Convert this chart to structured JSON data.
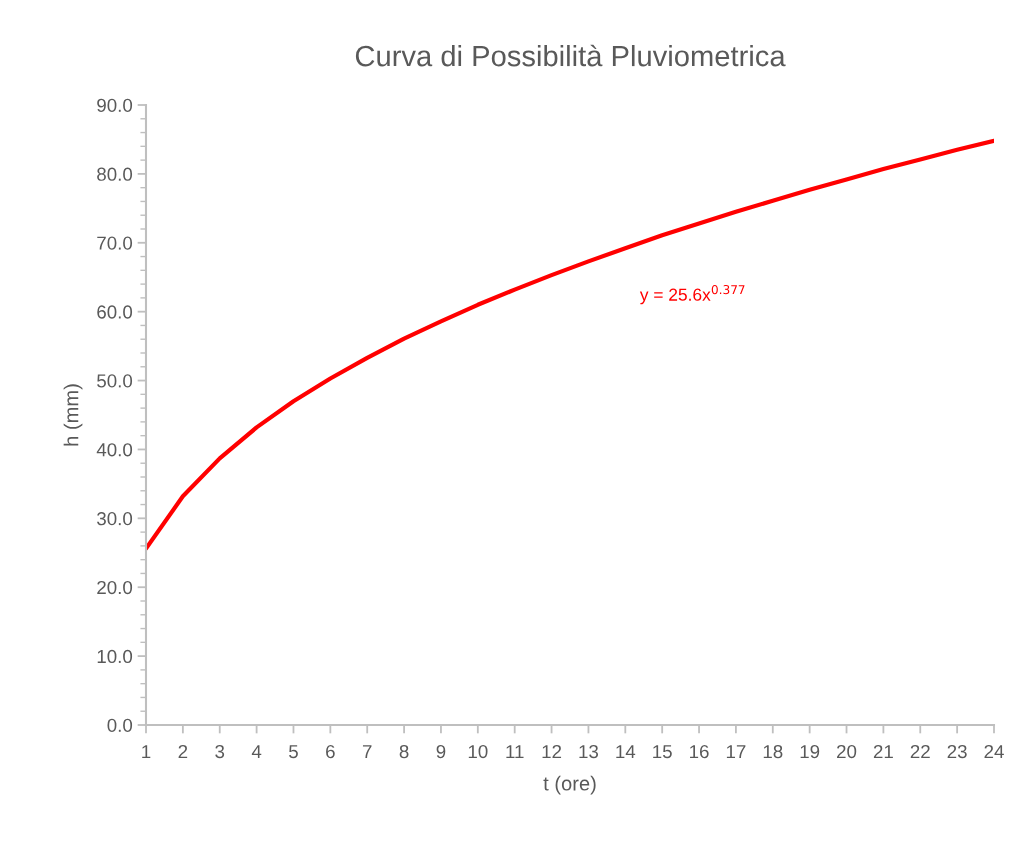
{
  "chart_data": {
    "type": "line",
    "title": "Curva di Possibilità Pluviometrica",
    "xlabel": "t (ore)",
    "ylabel": "h (mm)",
    "x": [
      1,
      2,
      3,
      4,
      5,
      6,
      7,
      8,
      9,
      10,
      11,
      12,
      13,
      14,
      15,
      16,
      17,
      18,
      19,
      20,
      21,
      22,
      23,
      24
    ],
    "series": [
      {
        "color": "#ff0000",
        "values": [
          25.6,
          33.2,
          38.7,
          43.2,
          47.0,
          50.3,
          53.3,
          56.1,
          58.6,
          61.0,
          63.2,
          65.3,
          67.3,
          69.2,
          71.1,
          72.8,
          74.5,
          76.1,
          77.7,
          79.2,
          80.7,
          82.1,
          83.5,
          84.8
        ]
      }
    ],
    "annotations": [
      "y = 25.6x$^{0.377}$"
    ],
    "xlim": [
      1,
      24
    ],
    "xticks": [
      1,
      2,
      3,
      4,
      5,
      6,
      7,
      8,
      9,
      10,
      11,
      12,
      13,
      14,
      15,
      16,
      17,
      18,
      19,
      20,
      21,
      22,
      23,
      24
    ],
    "ylim": [
      0,
      90
    ],
    "yticks": [
      {
        "value": 0,
        "label": "0.0"
      },
      {
        "value": 10,
        "label": "10.0"
      },
      {
        "value": 20,
        "label": "20.0"
      },
      {
        "value": 30,
        "label": "30.0"
      },
      {
        "value": 40,
        "label": "40.0"
      },
      {
        "value": 50,
        "label": "50.0"
      },
      {
        "value": 60,
        "label": "60.0"
      },
      {
        "value": 70,
        "label": "70.0"
      },
      {
        "value": 80,
        "label": "80.0"
      },
      {
        "value": 90,
        "label": "90.0"
      }
    ],
    "grid": false,
    "marker": "none",
    "line_style": "solid"
  }
}
